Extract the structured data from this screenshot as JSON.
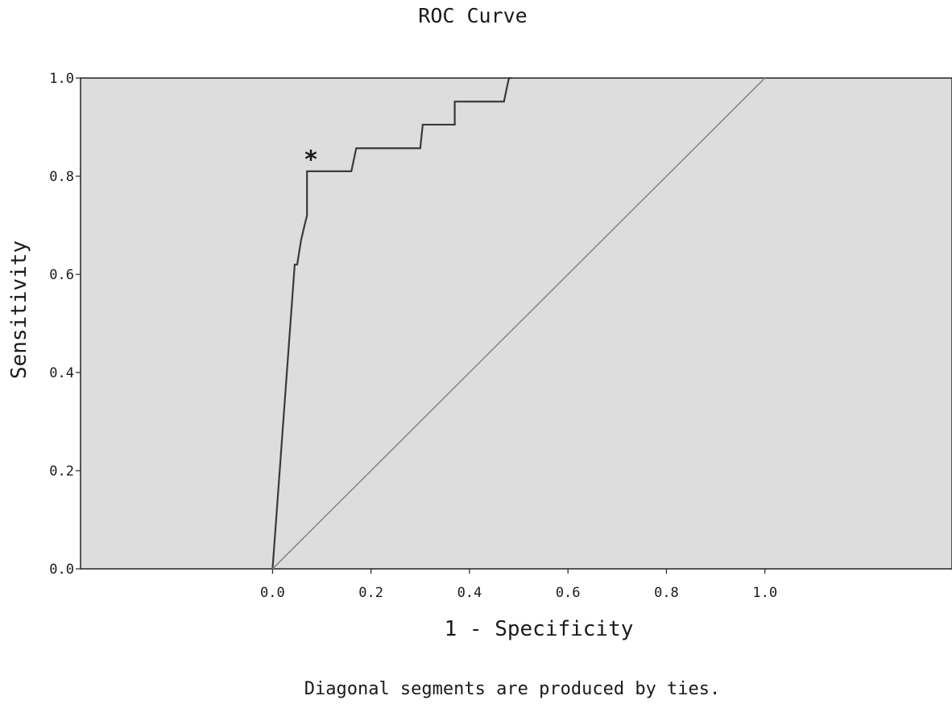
{
  "chart_data": {
    "type": "line",
    "title": "ROC Curve",
    "xlabel": "1 - Specificity",
    "ylabel": "Sensitivity",
    "footnote": "Diagonal segments are produced by ties.",
    "xticks": [
      "0.0",
      "0.2",
      "0.4",
      "0.6",
      "0.8",
      "1.0"
    ],
    "yticks": [
      "0.0",
      "0.2",
      "0.4",
      "0.6",
      "0.8",
      "1.0"
    ],
    "xlim": [
      -0.39,
      1.38
    ],
    "ylim": [
      0,
      1
    ],
    "grid": false,
    "series": [
      {
        "role": "roc-curve",
        "color": "#3a3a3a",
        "x": [
          0.0,
          0.045,
          0.05,
          0.058,
          0.065,
          0.07,
          0.07,
          0.16,
          0.17,
          0.17,
          0.3,
          0.305,
          0.305,
          0.37,
          0.37,
          0.47,
          0.48,
          0.485
        ],
        "y": [
          0.0,
          0.62,
          0.62,
          0.67,
          0.7,
          0.72,
          0.81,
          0.81,
          0.857,
          0.857,
          0.857,
          0.905,
          0.905,
          0.905,
          0.952,
          0.952,
          1.0,
          1.0
        ]
      },
      {
        "role": "reference-line",
        "color": "#8a8a8a",
        "x": [
          0.0,
          1.0
        ],
        "y": [
          0.0,
          1.0
        ]
      }
    ],
    "annotations": [
      {
        "text": "*",
        "x": 0.078,
        "y": 0.84
      }
    ]
  },
  "colors": {
    "plot_background": "#dddddd",
    "axis": "#222222",
    "roc_line": "#3a3a3a",
    "reference_line": "#8a8a8a"
  }
}
